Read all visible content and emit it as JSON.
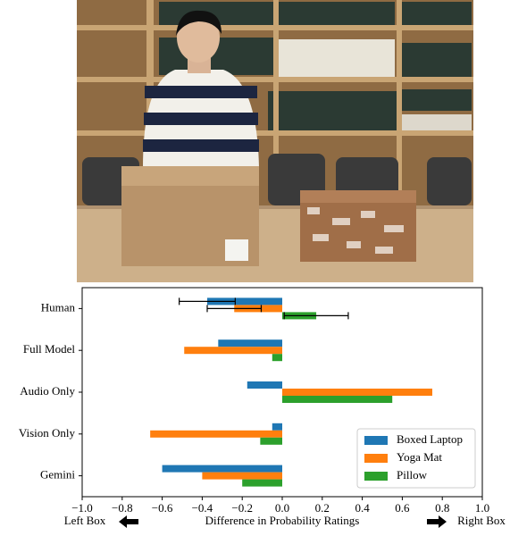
{
  "chart_data": {
    "type": "hbar",
    "xlabel": "Difference in Probability Ratings",
    "annotations": [
      "Left Box",
      "Right Box"
    ],
    "categories": [
      "Human",
      "Full Model",
      "Audio Only",
      "Vision Only",
      "Gemini"
    ],
    "series": [
      {
        "name": "Boxed Laptop",
        "color": "#1f77b4",
        "values": [
          -0.375,
          -0.32,
          -0.175,
          -0.05,
          -0.6
        ],
        "errors": [
          0.14,
          null,
          null,
          null,
          null
        ]
      },
      {
        "name": "Yoga Mat",
        "color": "#ff7f0e",
        "values": [
          -0.24,
          -0.49,
          0.75,
          -0.66,
          -0.4
        ],
        "errors": [
          0.135,
          null,
          null,
          null,
          null
        ]
      },
      {
        "name": "Pillow",
        "color": "#2ca02c",
        "values": [
          0.17,
          -0.05,
          0.55,
          -0.11,
          -0.2
        ],
        "errors": [
          0.16,
          null,
          null,
          null,
          null
        ]
      }
    ],
    "xlim": [
      -1,
      1
    ],
    "xticks": [
      {
        "value": -1,
        "label": "−1.0"
      },
      {
        "value": -0.8,
        "label": "−0.8"
      },
      {
        "value": -0.6,
        "label": "−0.6"
      },
      {
        "value": -0.4,
        "label": "−0.4"
      },
      {
        "value": -0.2,
        "label": "−0.2"
      },
      {
        "value": 0,
        "label": "0.0"
      },
      {
        "value": 0.2,
        "label": "0.2"
      },
      {
        "value": 0.4,
        "label": "0.4"
      },
      {
        "value": 0.6,
        "label": "0.6"
      },
      {
        "value": 0.8,
        "label": "0.8"
      },
      {
        "value": 1,
        "label": "1.0"
      }
    ],
    "legend": "lower right"
  }
}
